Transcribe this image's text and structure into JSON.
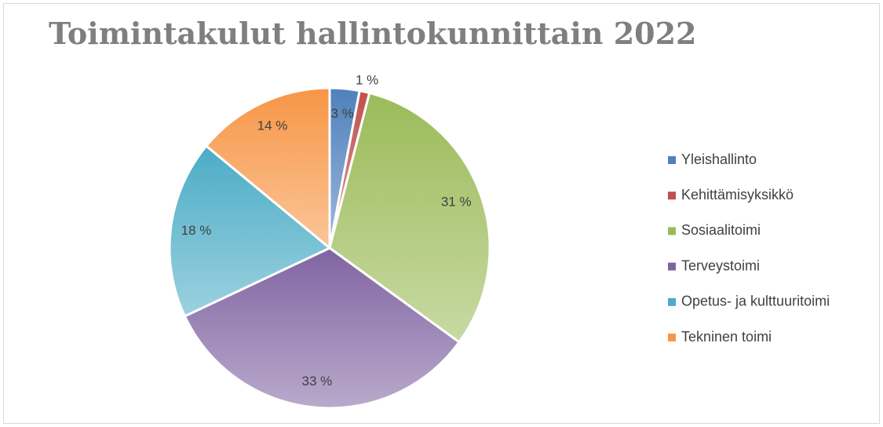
{
  "chart_data": {
    "type": "pie",
    "title": "Toimintakulut hallintokunnittain 2022",
    "categories": [
      "Yleishallinto",
      "Kehittämisyksikkö",
      "Sosiaalitoimi",
      "Terveystoimi",
      "Opetus- ja kulttuuritoimi",
      "Tekninen toimi"
    ],
    "values": [
      3,
      1,
      31,
      33,
      18,
      14
    ],
    "value_labels": [
      "3 %",
      "1 %",
      "31 %",
      "33 %",
      "18 %",
      "14 %"
    ],
    "colors": [
      "#4f81bd",
      "#c0504d",
      "#9bbb59",
      "#8064a2",
      "#4bacc6",
      "#f79646"
    ],
    "legend": "right"
  }
}
